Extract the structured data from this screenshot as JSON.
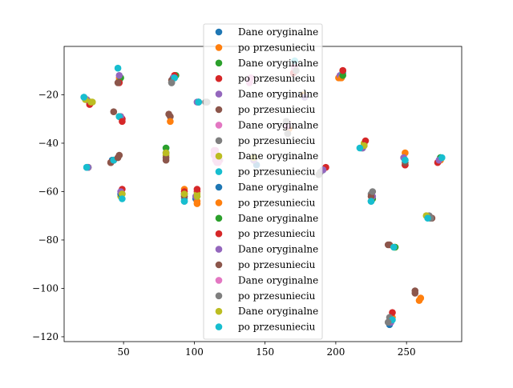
{
  "chart_data": {
    "type": "scatter",
    "title": "",
    "xlabel": "",
    "ylabel": "",
    "xlim": [
      8,
      289
    ],
    "ylim": [
      -122,
      0
    ],
    "xticks": [
      50,
      100,
      150,
      200,
      250
    ],
    "yticks": [
      -120,
      -100,
      -80,
      -60,
      -40,
      -20
    ],
    "xtick_labels": [
      "50",
      "100",
      "150",
      "200",
      "250"
    ],
    "ytick_labels": [
      "−120",
      "−100",
      "−80",
      "−60",
      "−40",
      "−20"
    ],
    "grid": false,
    "legend_position": "top-center",
    "series": [
      {
        "name": "Dane oryginalne",
        "color": "#1f77b4",
        "points": [
          [
            47,
            -14
          ],
          [
            86,
            -13
          ],
          [
            49,
            -30
          ],
          [
            101,
            -63
          ],
          [
            238,
            -115
          ],
          [
            203,
            -13
          ],
          [
            176,
            -20
          ],
          [
            42,
            -47
          ],
          [
            24,
            -50
          ],
          [
            80,
            -44
          ]
        ]
      },
      {
        "name": "po przesunieciu",
        "color": "#ff7f0e",
        "points": [
          [
            47,
            -13
          ],
          [
            86,
            -12
          ],
          [
            48,
            -29
          ],
          [
            102,
            -64
          ],
          [
            240,
            -112
          ],
          [
            202,
            -13
          ],
          [
            177,
            -20
          ],
          [
            43,
            -47
          ],
          [
            25,
            -50
          ],
          [
            259,
            -105
          ]
        ]
      },
      {
        "name": "Dane oryginalne",
        "color": "#2ca02c",
        "points": [
          [
            48,
            -13
          ],
          [
            87,
            -12
          ],
          [
            47,
            -29
          ],
          [
            102,
            -62
          ],
          [
            239,
            -113
          ],
          [
            204,
            -12
          ],
          [
            178,
            -21
          ],
          [
            43,
            -47
          ],
          [
            25,
            -50
          ],
          [
            220,
            -41
          ]
        ]
      },
      {
        "name": "po przesunieciu",
        "color": "#d62728",
        "points": [
          [
            47,
            -15
          ],
          [
            86,
            -12
          ],
          [
            49,
            -30
          ],
          [
            102,
            -60
          ],
          [
            240,
            -110
          ],
          [
            205,
            -10
          ],
          [
            26,
            -23
          ],
          [
            41,
            -48
          ],
          [
            49,
            -59
          ],
          [
            249,
            -49
          ]
        ]
      },
      {
        "name": "Dane oryginalne",
        "color": "#9467bd",
        "points": [
          [
            47,
            -12
          ],
          [
            85,
            -13
          ],
          [
            48,
            -29
          ],
          [
            101,
            -62
          ],
          [
            239,
            -114
          ],
          [
            203,
            -12
          ],
          [
            178,
            -21
          ],
          [
            43,
            -47
          ],
          [
            25,
            -50
          ],
          [
            80,
            -44
          ]
        ]
      },
      {
        "name": "po przesunieciu",
        "color": "#8c564b",
        "points": [
          [
            46,
            -15
          ],
          [
            84,
            -14
          ],
          [
            43,
            -27
          ],
          [
            80,
            -47
          ],
          [
            237,
            -82
          ],
          [
            256,
            -101
          ],
          [
            83,
            -29
          ],
          [
            47,
            -45
          ],
          [
            41,
            -48
          ],
          [
            267,
            -71
          ]
        ]
      },
      {
        "name": "Dane oryginalne",
        "color": "#e377c2",
        "points": [
          [
            115,
            -43
          ],
          [
            116,
            -48
          ],
          [
            114,
            -45
          ],
          [
            117,
            -47
          ],
          [
            171,
            -8
          ],
          [
            166,
            -32
          ],
          [
            140,
            -13
          ],
          [
            139,
            -15
          ],
          [
            115,
            -45
          ],
          [
            118,
            -47
          ]
        ]
      },
      {
        "name": "po przesunieciu",
        "color": "#7f7f7f",
        "points": [
          [
            84,
            -15
          ],
          [
            171,
            -10
          ],
          [
            166,
            -36
          ],
          [
            225,
            -61
          ],
          [
            238,
            -112
          ],
          [
            109,
            -23
          ],
          [
            165,
            -31
          ],
          [
            189,
            -52
          ],
          [
            266,
            -70
          ],
          [
            117,
            -47
          ]
        ]
      },
      {
        "name": "Dane oryginalne",
        "color": "#bcbd22",
        "points": [
          [
            24,
            -22
          ],
          [
            80,
            -45
          ],
          [
            93,
            -61
          ],
          [
            142,
            -47
          ],
          [
            220,
            -40
          ],
          [
            264,
            -70
          ],
          [
            102,
            -61
          ],
          [
            28,
            -23
          ],
          [
            242,
            -83
          ],
          [
            48,
            -62
          ]
        ]
      },
      {
        "name": "po przesunieciu",
        "color": "#17becf",
        "points": [
          [
            46,
            -9
          ],
          [
            86,
            -13
          ],
          [
            47,
            -29
          ],
          [
            93,
            -63
          ],
          [
            240,
            -113
          ],
          [
            205,
            -11
          ],
          [
            171,
            -6
          ],
          [
            43,
            -47
          ],
          [
            24,
            -50
          ],
          [
            80,
            -42
          ]
        ]
      },
      {
        "name": "Dane oryginalne",
        "color": "#1f77b4",
        "points": [
          [
            22,
            -21
          ],
          [
            103,
            -23
          ],
          [
            48,
            -61
          ],
          [
            93,
            -64
          ],
          [
            218,
            -42
          ],
          [
            274,
            -46
          ],
          [
            225,
            -64
          ],
          [
            249,
            -47
          ],
          [
            191,
            -51
          ],
          [
            144,
            -49
          ]
        ]
      },
      {
        "name": "po przesunieciu",
        "color": "#ff7f0e",
        "points": [
          [
            249,
            -44
          ],
          [
            102,
            -65
          ],
          [
            83,
            -31
          ],
          [
            93,
            -59
          ],
          [
            220,
            -41
          ],
          [
            274,
            -47
          ],
          [
            226,
            -63
          ],
          [
            260,
            -104
          ],
          [
            204,
            -13
          ],
          [
            167,
            -34
          ]
        ]
      },
      {
        "name": "Dane oryginalne",
        "color": "#2ca02c",
        "points": [
          [
            80,
            -42
          ],
          [
            24,
            -22
          ],
          [
            49,
            -61
          ],
          [
            93,
            -61
          ],
          [
            219,
            -42
          ],
          [
            274,
            -46
          ],
          [
            226,
            -63
          ],
          [
            242,
            -83
          ],
          [
            205,
            -12
          ],
          [
            171,
            -9
          ]
        ]
      },
      {
        "name": "po przesunieciu",
        "color": "#d62728",
        "points": [
          [
            26,
            -24
          ],
          [
            102,
            -59
          ],
          [
            49,
            -31
          ],
          [
            93,
            -60
          ],
          [
            221,
            -39
          ],
          [
            272,
            -48
          ],
          [
            205,
            -10
          ],
          [
            249,
            -49
          ],
          [
            193,
            -50
          ],
          [
            170,
            -11
          ]
        ]
      },
      {
        "name": "Dane oryginalne",
        "color": "#9467bd",
        "points": [
          [
            24,
            -22
          ],
          [
            102,
            -23
          ],
          [
            48,
            -60
          ],
          [
            93,
            -62
          ],
          [
            219,
            -42
          ],
          [
            273,
            -47
          ],
          [
            226,
            -62
          ],
          [
            248,
            -46
          ],
          [
            191,
            -51
          ],
          [
            142,
            -47
          ]
        ]
      },
      {
        "name": "po przesunieciu",
        "color": "#8c564b",
        "points": [
          [
            82,
            -28
          ],
          [
            80,
            -46
          ],
          [
            46,
            -46
          ],
          [
            93,
            -62
          ],
          [
            238,
            -82
          ],
          [
            256,
            -102
          ],
          [
            225,
            -62
          ],
          [
            249,
            -48
          ],
          [
            220,
            -41
          ],
          [
            268,
            -71
          ]
        ]
      },
      {
        "name": "Dane oryginalne",
        "color": "#e377c2",
        "points": [
          [
            115,
            -44
          ],
          [
            116,
            -46
          ],
          [
            114,
            -43
          ],
          [
            117,
            -48
          ],
          [
            116,
            -45
          ],
          [
            115,
            -47
          ],
          [
            171,
            -9
          ],
          [
            166,
            -33
          ],
          [
            139,
            -14
          ],
          [
            114,
            -44
          ]
        ]
      },
      {
        "name": "po przesunieciu",
        "color": "#7f7f7f",
        "points": [
          [
            108,
            -23
          ],
          [
            166,
            -36
          ],
          [
            172,
            -10
          ],
          [
            226,
            -60
          ],
          [
            237,
            -114
          ],
          [
            188,
            -53
          ],
          [
            165,
            -31
          ],
          [
            84,
            -15
          ],
          [
            267,
            -71
          ],
          [
            103,
            -23
          ]
        ]
      },
      {
        "name": "Dane oryginalne",
        "color": "#bcbd22",
        "points": [
          [
            23,
            -22
          ],
          [
            80,
            -44
          ],
          [
            93,
            -61
          ],
          [
            142,
            -46
          ],
          [
            220,
            -41
          ],
          [
            264,
            -70
          ],
          [
            102,
            -62
          ],
          [
            27,
            -23
          ],
          [
            241,
            -83
          ],
          [
            49,
            -61
          ]
        ]
      },
      {
        "name": "po przesunieciu",
        "color": "#17becf",
        "points": [
          [
            22,
            -21
          ],
          [
            103,
            -23
          ],
          [
            49,
            -63
          ],
          [
            93,
            -64
          ],
          [
            217,
            -42
          ],
          [
            275,
            -46
          ],
          [
            225,
            -64
          ],
          [
            249,
            -47
          ],
          [
            241,
            -83
          ],
          [
            265,
            -71
          ]
        ]
      }
    ]
  }
}
